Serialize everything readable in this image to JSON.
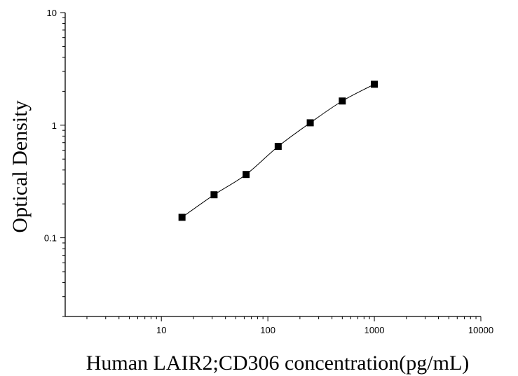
{
  "chart_data": {
    "type": "scatter",
    "title": "",
    "xlabel": "Human LAIR2;CD306 concentration(pg/mL)",
    "ylabel": "Optical Density",
    "x_scale": "log",
    "y_scale": "log",
    "xlim": [
      1.25,
      10000
    ],
    "ylim": [
      0.02,
      10
    ],
    "x_ticks": [
      {
        "value": 10,
        "label": "10"
      },
      {
        "value": 100,
        "label": "100"
      },
      {
        "value": 1000,
        "label": "1000"
      },
      {
        "value": 10000,
        "label": "10000"
      }
    ],
    "y_ticks": [
      {
        "value": 0.1,
        "label": "0.1"
      },
      {
        "value": 1,
        "label": "1"
      },
      {
        "value": 10,
        "label": "10"
      }
    ],
    "grid": false,
    "legend": "none",
    "marker_color": "#000000",
    "curve_color": "#000000",
    "series": [
      {
        "x": [
          15.625,
          31.25,
          62.5,
          125,
          250,
          500,
          1000
        ],
        "y": [
          0.152,
          0.241,
          0.365,
          0.648,
          1.05,
          1.64,
          2.31
        ]
      }
    ]
  }
}
